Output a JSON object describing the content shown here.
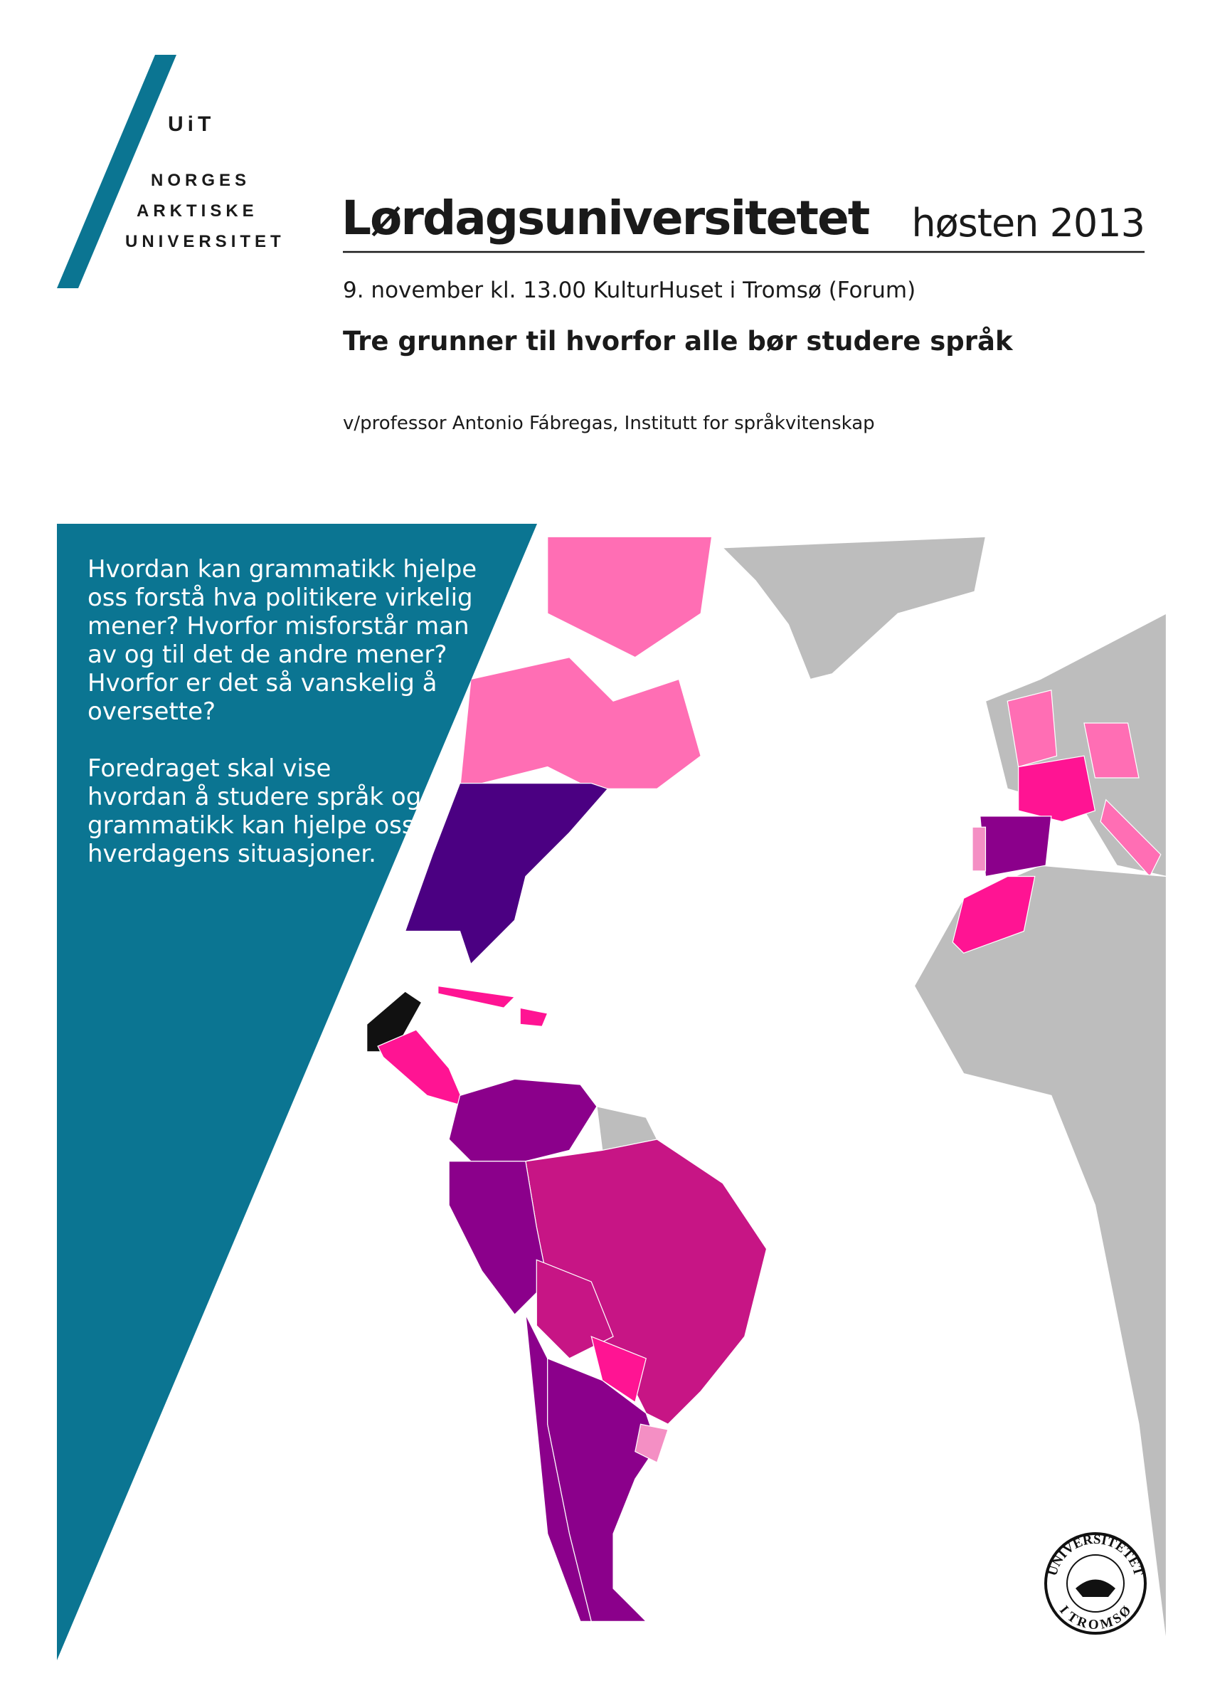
{
  "logo": {
    "name": "UiT",
    "lines": [
      "NORGES",
      "ARKTISKE",
      "UNIVERSITET"
    ]
  },
  "header": {
    "title": "Lørdagsuniversitetet",
    "season": "høsten 2013"
  },
  "event": {
    "when": "9. november kl. 13.00 KulturHuset i Tromsø (Forum)",
    "title": "Tre grunner til hvorfor alle bør studere språk",
    "speaker": "v/professor Antonio Fábregas, Institutt for språkvitenskap"
  },
  "intro": {
    "paragraphs": [
      [
        "Hvordan kan grammatikk hjelpe",
        "oss forstå hva politikere virkelig",
        "mener? Hvorfor misforstår man",
        "av og til det de andre mener?",
        "Hvorfor er det så vanskelig å",
        "oversette?"
      ],
      [
        "Foredraget skal vise",
        "hvordan å studere språk og",
        "grammatikk kan hjelpe oss i",
        "hverdagens situasjoner."
      ]
    ]
  },
  "seal": {
    "top": "UNIVERSITETET",
    "bottom": "I TROMSØ"
  }
}
